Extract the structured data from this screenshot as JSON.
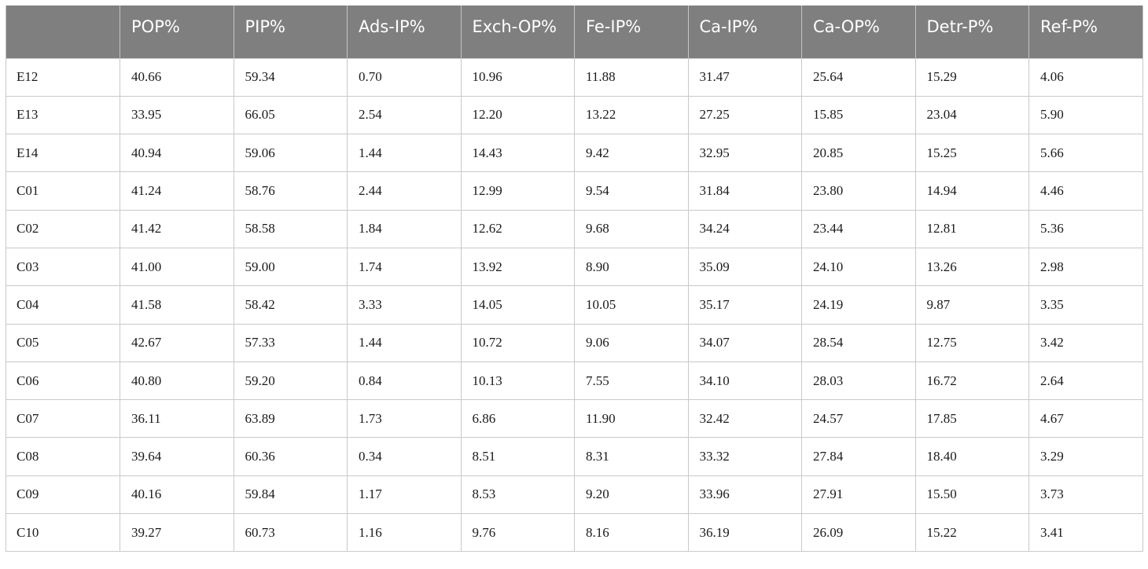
{
  "table": {
    "headers": [
      "",
      "POP%",
      "PIP%",
      "Ads-IP%",
      "Exch-OP%",
      "Fe-IP%",
      "Ca-IP%",
      "Ca-OP%",
      "Detr-P%",
      "Ref-P%"
    ],
    "rows": [
      [
        "E12",
        "40.66",
        "59.34",
        "0.70",
        "10.96",
        "11.88",
        "31.47",
        "25.64",
        "15.29",
        "4.06"
      ],
      [
        "E13",
        "33.95",
        "66.05",
        "2.54",
        "12.20",
        "13.22",
        "27.25",
        "15.85",
        "23.04",
        "5.90"
      ],
      [
        "E14",
        "40.94",
        "59.06",
        "1.44",
        "14.43",
        "9.42",
        "32.95",
        "20.85",
        "15.25",
        "5.66"
      ],
      [
        "C01",
        "41.24",
        "58.76",
        "2.44",
        "12.99",
        "9.54",
        "31.84",
        "23.80",
        "14.94",
        "4.46"
      ],
      [
        "C02",
        "41.42",
        "58.58",
        "1.84",
        "12.62",
        "9.68",
        "34.24",
        "23.44",
        "12.81",
        "5.36"
      ],
      [
        "C03",
        "41.00",
        "59.00",
        "1.74",
        "13.92",
        "8.90",
        "35.09",
        "24.10",
        "13.26",
        "2.98"
      ],
      [
        "C04",
        "41.58",
        "58.42",
        "3.33",
        "14.05",
        "10.05",
        "35.17",
        "24.19",
        "9.87",
        "3.35"
      ],
      [
        "C05",
        "42.67",
        "57.33",
        "1.44",
        "10.72",
        "9.06",
        "34.07",
        "28.54",
        "12.75",
        "3.42"
      ],
      [
        "C06",
        "40.80",
        "59.20",
        "0.84",
        "10.13",
        "7.55",
        "34.10",
        "28.03",
        "16.72",
        "2.64"
      ],
      [
        "C07",
        "36.11",
        "63.89",
        "1.73",
        "6.86",
        "11.90",
        "32.42",
        "24.57",
        "17.85",
        "4.67"
      ],
      [
        "C08",
        "39.64",
        "60.36",
        "0.34",
        "8.51",
        "8.31",
        "33.32",
        "27.84",
        "18.40",
        "3.29"
      ],
      [
        "C09",
        "40.16",
        "59.84",
        "1.17",
        "8.53",
        "9.20",
        "33.96",
        "27.91",
        "15.50",
        "3.73"
      ],
      [
        "C10",
        "39.27",
        "60.73",
        "1.16",
        "9.76",
        "8.16",
        "36.19",
        "26.09",
        "15.22",
        "3.41"
      ]
    ]
  }
}
